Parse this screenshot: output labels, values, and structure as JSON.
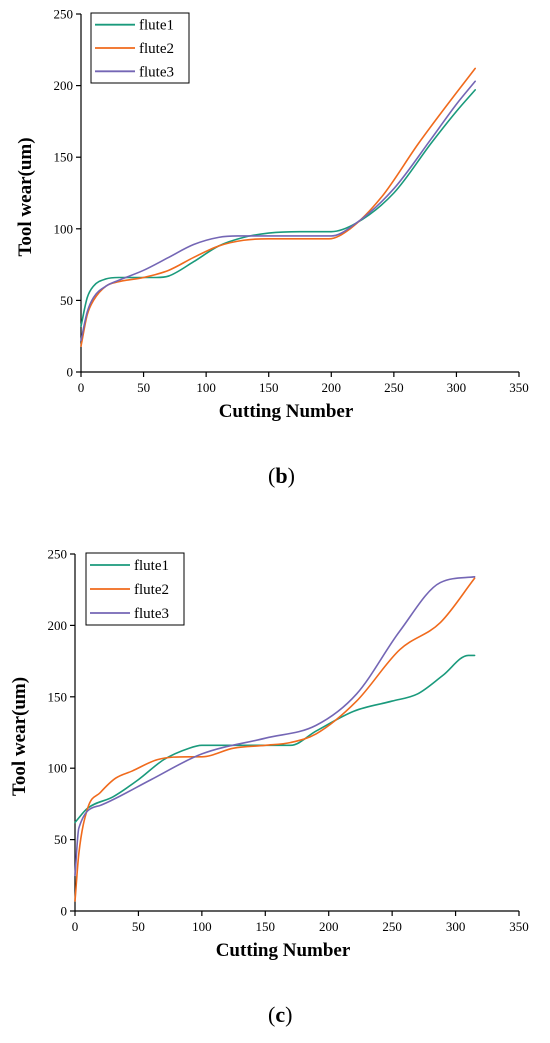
{
  "chart_data": [
    {
      "type": "line",
      "panel": "b",
      "title": "",
      "xlabel": "Cutting Number",
      "ylabel": "Tool wear(um)",
      "xlim": [
        0,
        350
      ],
      "ylim": [
        0,
        250
      ],
      "xticks": [
        0,
        50,
        100,
        150,
        200,
        250,
        300,
        350
      ],
      "yticks": [
        0,
        50,
        100,
        150,
        200,
        250
      ],
      "grid": false,
      "legend_position": "top-left",
      "series": [
        {
          "name": "flute1",
          "color": "#1a9a7c",
          "x": [
            0,
            5,
            10,
            20,
            30,
            50,
            60,
            70,
            90,
            110,
            130,
            150,
            175,
            200,
            220,
            250,
            280,
            300,
            315
          ],
          "y": [
            32,
            52,
            60,
            65,
            66,
            66,
            66,
            67,
            77,
            88,
            94,
            97,
            98,
            98,
            104,
            125,
            160,
            182,
            197
          ]
        },
        {
          "name": "flute2",
          "color": "#f06a1c",
          "x": [
            0,
            5,
            10,
            20,
            30,
            50,
            70,
            90,
            110,
            130,
            150,
            175,
            198,
            215,
            240,
            270,
            300,
            315
          ],
          "y": [
            18,
            40,
            50,
            60,
            63,
            66,
            71,
            80,
            88,
            92,
            93,
            93,
            93,
            100,
            122,
            160,
            195,
            212
          ]
        },
        {
          "name": "flute3",
          "color": "#7466b5",
          "x": [
            0,
            5,
            10,
            20,
            30,
            50,
            70,
            90,
            110,
            125,
            150,
            175,
            200,
            220,
            250,
            280,
            300,
            315
          ],
          "y": [
            22,
            42,
            52,
            60,
            64,
            71,
            80,
            89,
            94,
            95,
            95,
            95,
            95,
            104,
            128,
            163,
            187,
            203
          ]
        }
      ]
    },
    {
      "type": "line",
      "panel": "c",
      "title": "",
      "xlabel": "Cutting Number",
      "ylabel": "Tool wear(um)",
      "xlim": [
        0,
        350
      ],
      "ylim": [
        0,
        250
      ],
      "xticks": [
        0,
        50,
        100,
        150,
        200,
        250,
        300,
        350
      ],
      "yticks": [
        0,
        50,
        100,
        150,
        200,
        250
      ],
      "grid": false,
      "legend_position": "top-left",
      "series": [
        {
          "name": "flute1",
          "color": "#1a9a7c",
          "x": [
            0,
            10,
            30,
            50,
            70,
            90,
            100,
            130,
            150,
            170,
            190,
            220,
            250,
            270,
            290,
            310,
            315
          ],
          "y": [
            62,
            72,
            80,
            92,
            106,
            114,
            116,
            116,
            116,
            116,
            126,
            140,
            147,
            152,
            165,
            179,
            179
          ]
        },
        {
          "name": "flute2",
          "color": "#f06a1c",
          "x": [
            0,
            3,
            10,
            20,
            32,
            45,
            65,
            90,
            100,
            125,
            150,
            170,
            190,
            222,
            256,
            288,
            315
          ],
          "y": [
            7,
            40,
            72,
            83,
            93,
            98,
            106,
            108,
            108,
            114,
            116,
            118,
            124,
            147,
            183,
            202,
            233
          ]
        },
        {
          "name": "flute3",
          "color": "#7466b5",
          "x": [
            0,
            3,
            20,
            30,
            60,
            100,
            150,
            190,
            222,
            256,
            288,
            315
          ],
          "y": [
            25,
            58,
            74,
            78,
            92,
            110,
            121,
            130,
            152,
            196,
            230,
            234
          ]
        }
      ]
    }
  ],
  "captions": [
    {
      "open": "(",
      "letter": "b",
      "close": ")"
    },
    {
      "open": "(",
      "letter": "c",
      "close": ")"
    }
  ]
}
